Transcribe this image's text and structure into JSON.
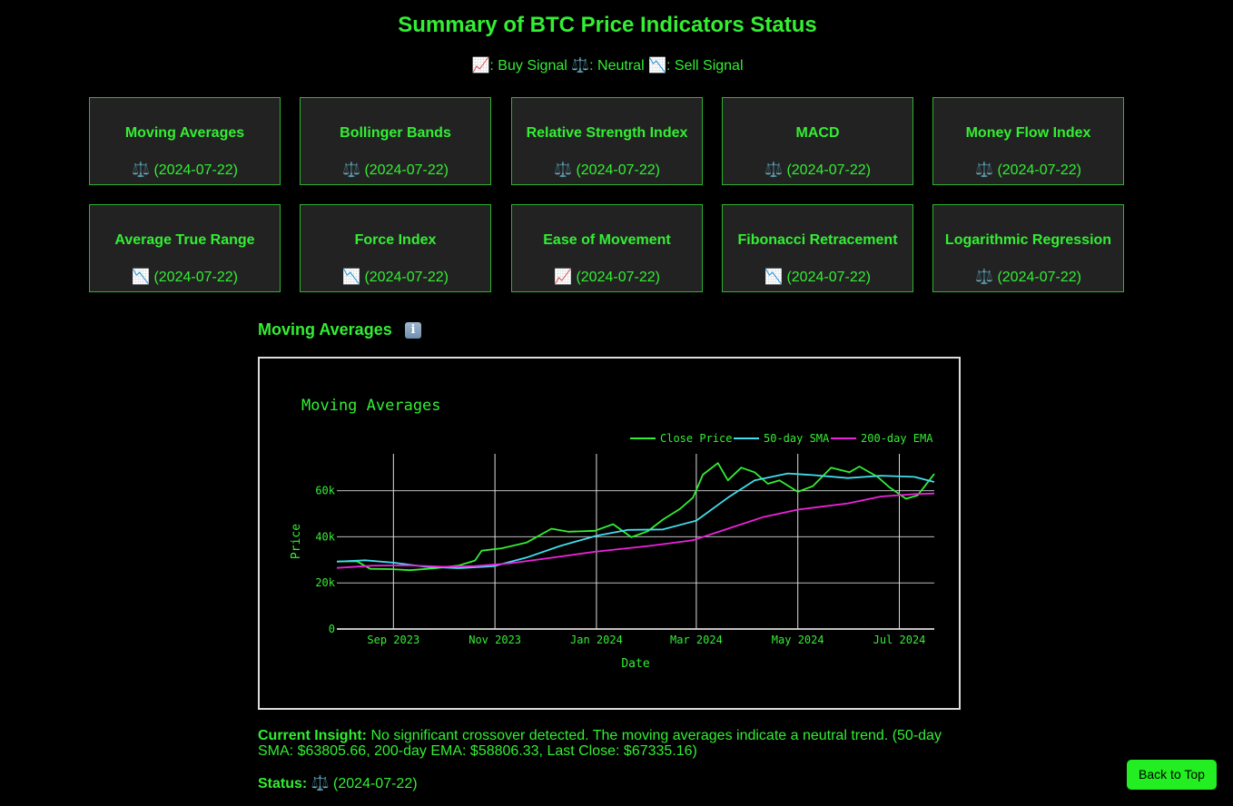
{
  "page": {
    "title": "Summary of BTC Price Indicators Status",
    "legend": {
      "buy_icon": "📈",
      "buy_label": ": Buy Signal ",
      "neutral_icon": "⚖️",
      "neutral_label": ": Neutral ",
      "sell_icon": "📉",
      "sell_label": ": Sell Signal"
    }
  },
  "cards": [
    {
      "name": "Moving Averages",
      "icon": "⚖️",
      "date": "(2024-07-22)"
    },
    {
      "name": "Bollinger Bands",
      "icon": "⚖️",
      "date": "(2024-07-22)"
    },
    {
      "name": "Relative Strength Index",
      "icon": "⚖️",
      "date": "(2024-07-22)"
    },
    {
      "name": "MACD",
      "icon": "⚖️",
      "date": "(2024-07-22)"
    },
    {
      "name": "Money Flow Index",
      "icon": "⚖️",
      "date": "(2024-07-22)"
    },
    {
      "name": "Average True Range",
      "icon": "📉",
      "date": "(2024-07-22)"
    },
    {
      "name": "Force Index",
      "icon": "📉",
      "date": "(2024-07-22)"
    },
    {
      "name": "Ease of Movement",
      "icon": "📈",
      "date": "(2024-07-22)"
    },
    {
      "name": "Fibonacci Retracement",
      "icon": "📉",
      "date": "(2024-07-22)"
    },
    {
      "name": "Logarithmic Regression",
      "icon": "⚖️",
      "date": "(2024-07-22)"
    }
  ],
  "section": {
    "title": "Moving Averages",
    "info_icon": "i"
  },
  "insight": {
    "label": "Current Insight:",
    "text": " No significant crossover detected. The moving averages indicate a neutral trend. (50-day SMA: $63805.66, 200-day EMA: $58806.33, Last Close: $67335.16)"
  },
  "status": {
    "label": "Status:",
    "icon": "⚖️",
    "date": " (2024-07-22)"
  },
  "back_to_top": "Back to Top",
  "colors": {
    "accent": "#33ee33",
    "card_bg": "#222222",
    "sma": "#44ddee",
    "ema": "#ee22dd",
    "button": "#22ee22"
  },
  "chart_data": {
    "type": "line",
    "title": "Moving Averages",
    "xlabel": "Date",
    "ylabel": "Price",
    "ylim": [
      0,
      76000
    ],
    "xlim": [
      "2023-07-29",
      "2024-07-22"
    ],
    "x_ticks": [
      {
        "date": "2023-09-01",
        "label": "Sep 2023"
      },
      {
        "date": "2023-11-01",
        "label": "Nov 2023"
      },
      {
        "date": "2024-01-01",
        "label": "Jan 2024"
      },
      {
        "date": "2024-03-01",
        "label": "Mar 2024"
      },
      {
        "date": "2024-05-01",
        "label": "May 2024"
      },
      {
        "date": "2024-07-01",
        "label": "Jul 2024"
      }
    ],
    "y_ticks": [
      {
        "value": 0,
        "label": "0"
      },
      {
        "value": 20000,
        "label": "20k"
      },
      {
        "value": 40000,
        "label": "40k"
      },
      {
        "value": 60000,
        "label": "60k"
      }
    ],
    "legend_position": "top-right",
    "grid": true,
    "series": [
      {
        "name": "Close Price",
        "color": "#33ee33",
        "x": [
          "2023-07-29",
          "2023-08-10",
          "2023-08-18",
          "2023-08-30",
          "2023-09-11",
          "2023-09-25",
          "2023-10-10",
          "2023-10-20",
          "2023-10-24",
          "2023-11-05",
          "2023-11-20",
          "2023-12-05",
          "2023-12-15",
          "2023-12-31",
          "2024-01-11",
          "2024-01-22",
          "2024-02-01",
          "2024-02-10",
          "2024-02-20",
          "2024-02-28",
          "2024-03-05",
          "2024-03-14",
          "2024-03-20",
          "2024-03-28",
          "2024-04-05",
          "2024-04-13",
          "2024-04-20",
          "2024-05-01",
          "2024-05-10",
          "2024-05-21",
          "2024-06-01",
          "2024-06-07",
          "2024-06-18",
          "2024-06-25",
          "2024-07-05",
          "2024-07-12",
          "2024-07-22"
        ],
        "values": [
          29300,
          29400,
          26100,
          26000,
          25500,
          26300,
          27500,
          29700,
          34000,
          35000,
          37500,
          43500,
          42200,
          42600,
          45500,
          39800,
          42500,
          47500,
          52000,
          57000,
          67000,
          72000,
          64500,
          70000,
          68000,
          63000,
          64500,
          59500,
          62000,
          70000,
          68000,
          70500,
          66000,
          61500,
          56500,
          58000,
          67300
        ]
      },
      {
        "name": "50-day SMA",
        "color": "#44ddee",
        "x": [
          "2023-07-29",
          "2023-08-15",
          "2023-09-01",
          "2023-09-20",
          "2023-10-10",
          "2023-10-31",
          "2023-11-20",
          "2023-12-10",
          "2024-01-01",
          "2024-01-20",
          "2024-02-10",
          "2024-03-01",
          "2024-03-20",
          "2024-04-05",
          "2024-04-25",
          "2024-05-10",
          "2024-05-31",
          "2024-06-20",
          "2024-07-10",
          "2024-07-22"
        ],
        "values": [
          29200,
          29800,
          28800,
          27000,
          26400,
          27200,
          31000,
          36000,
          40500,
          43000,
          43200,
          47000,
          57000,
          64500,
          67500,
          66800,
          65500,
          66500,
          66000,
          63800
        ]
      },
      {
        "name": "200-day EMA",
        "color": "#ee22dd",
        "x": [
          "2023-07-29",
          "2023-08-20",
          "2023-09-10",
          "2023-10-01",
          "2023-10-20",
          "2023-11-10",
          "2023-12-01",
          "2023-12-31",
          "2024-02-01",
          "2024-02-28",
          "2024-03-20",
          "2024-04-10",
          "2024-05-01",
          "2024-05-31",
          "2024-06-20",
          "2024-07-10",
          "2024-07-22"
        ],
        "values": [
          26500,
          27500,
          27600,
          27000,
          27300,
          28500,
          30500,
          33500,
          36000,
          38500,
          43500,
          48500,
          51800,
          54500,
          57500,
          58500,
          58800
        ]
      }
    ]
  }
}
